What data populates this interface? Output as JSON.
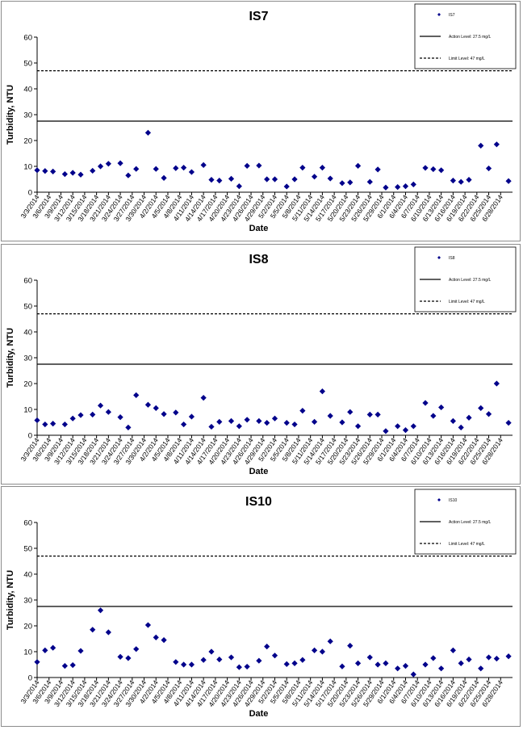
{
  "chart_data": [
    {
      "type": "scatter",
      "title": "IS7",
      "xlabel": "Date",
      "ylabel": "Turbidity, NTU",
      "ylim": [
        0,
        60
      ],
      "yticks": [
        0,
        10,
        20,
        30,
        40,
        50,
        60
      ],
      "xlim": [
        "2014-03-03",
        "2014-07-01"
      ],
      "x_tick_labels": [
        "3/3/2014",
        "3/6/2014",
        "3/9/2014",
        "3/12/2014",
        "3/15/2014",
        "3/18/2014",
        "3/21/2014",
        "3/24/2014",
        "3/27/2014",
        "3/30/2014",
        "4/2/2014",
        "4/5/2014",
        "4/8/2014",
        "4/11/2014",
        "4/14/2014",
        "4/17/2014",
        "4/20/2014",
        "4/23/2014",
        "4/26/2014",
        "4/29/2014",
        "5/2/2014",
        "5/5/2014",
        "5/8/2014",
        "5/11/2014",
        "5/14/2014",
        "5/17/2014",
        "5/20/2014",
        "5/23/2014",
        "5/26/2014",
        "5/29/2014",
        "6/1/2014",
        "6/4/2014",
        "6/7/2014",
        "6/10/2014",
        "6/13/2014",
        "6/16/2014",
        "6/19/2014",
        "6/22/2014",
        "6/25/2014",
        "6/28/2014"
      ],
      "grid": false,
      "legend_position": "top-right",
      "series": [
        {
          "name": "IS7",
          "kind": "points",
          "color": "#00008b",
          "x": [
            "2014-03-03",
            "2014-03-05",
            "2014-03-07",
            "2014-03-10",
            "2014-03-12",
            "2014-03-14",
            "2014-03-17",
            "2014-03-19",
            "2014-03-21",
            "2014-03-24",
            "2014-03-26",
            "2014-03-28",
            "2014-03-31",
            "2014-04-02",
            "2014-04-04",
            "2014-04-07",
            "2014-04-09",
            "2014-04-11",
            "2014-04-14",
            "2014-04-16",
            "2014-04-18",
            "2014-04-21",
            "2014-04-23",
            "2014-04-25",
            "2014-04-28",
            "2014-04-30",
            "2014-05-02",
            "2014-05-05",
            "2014-05-07",
            "2014-05-09",
            "2014-05-12",
            "2014-05-14",
            "2014-05-16",
            "2014-05-19",
            "2014-05-21",
            "2014-05-23",
            "2014-05-26",
            "2014-05-28",
            "2014-05-30",
            "2014-06-02",
            "2014-06-04",
            "2014-06-06",
            "2014-06-09",
            "2014-06-11",
            "2014-06-13",
            "2014-06-16",
            "2014-06-18",
            "2014-06-20",
            "2014-06-23",
            "2014-06-25",
            "2014-06-27",
            "2014-06-30"
          ],
          "y": [
            8.5,
            8.2,
            8.0,
            7.0,
            7.5,
            6.8,
            8.3,
            10.0,
            11.0,
            11.2,
            6.5,
            9.0,
            23.0,
            9.0,
            5.5,
            9.3,
            9.5,
            7.8,
            10.5,
            4.8,
            4.5,
            5.2,
            2.3,
            10.2,
            10.3,
            5.0,
            5.0,
            2.2,
            5.0,
            9.5,
            6.0,
            9.5,
            5.3,
            3.5,
            3.8,
            10.2,
            4.0,
            8.8,
            1.8,
            2.0,
            2.3,
            3.0,
            9.4,
            8.9,
            8.5,
            4.5,
            4.0,
            4.8,
            18.0,
            9.2,
            18.5,
            4.3
          ]
        },
        {
          "name": "Action Level: 27.5 mg/L",
          "kind": "line",
          "style": "solid",
          "color": "#000000",
          "value": 27.5
        },
        {
          "name": "Limit Level: 47 mg/L",
          "kind": "line",
          "style": "dashed",
          "color": "#000000",
          "value": 47
        }
      ]
    },
    {
      "type": "scatter",
      "title": "IS8",
      "xlabel": "Date",
      "ylabel": "Turbidity, NTU",
      "ylim": [
        0,
        60
      ],
      "yticks": [
        0,
        10,
        20,
        30,
        40,
        50,
        60
      ],
      "xlim": [
        "2014-03-03",
        "2014-07-01"
      ],
      "x_tick_labels": [
        "3/3/2014",
        "3/6/2014",
        "3/9/2014",
        "3/12/2014",
        "3/15/2014",
        "3/18/2014",
        "3/21/2014",
        "3/24/2014",
        "3/27/2014",
        "3/30/2014",
        "4/2/2014",
        "4/5/2014",
        "4/8/2014",
        "4/11/2014",
        "4/14/2014",
        "4/17/2014",
        "4/20/2014",
        "4/23/2014",
        "4/26/2014",
        "4/29/2014",
        "5/2/2014",
        "5/5/2014",
        "5/8/2014",
        "5/11/2014",
        "5/14/2014",
        "5/17/2014",
        "5/20/2014",
        "5/23/2014",
        "5/26/2014",
        "5/29/2014",
        "6/1/2014",
        "6/4/2014",
        "6/7/2014",
        "6/10/2014",
        "6/13/2014",
        "6/16/2014",
        "6/19/2014",
        "6/22/2014",
        "6/25/2014",
        "6/28/2014"
      ],
      "grid": false,
      "legend_position": "top-right",
      "series": [
        {
          "name": "IS8",
          "kind": "points",
          "color": "#00008b",
          "x": [
            "2014-03-03",
            "2014-03-05",
            "2014-03-07",
            "2014-03-10",
            "2014-03-12",
            "2014-03-14",
            "2014-03-17",
            "2014-03-19",
            "2014-03-21",
            "2014-03-24",
            "2014-03-26",
            "2014-03-28",
            "2014-03-31",
            "2014-04-02",
            "2014-04-04",
            "2014-04-07",
            "2014-04-09",
            "2014-04-11",
            "2014-04-14",
            "2014-04-16",
            "2014-04-18",
            "2014-04-21",
            "2014-04-23",
            "2014-04-25",
            "2014-04-28",
            "2014-04-30",
            "2014-05-02",
            "2014-05-05",
            "2014-05-07",
            "2014-05-09",
            "2014-05-12",
            "2014-05-14",
            "2014-05-16",
            "2014-05-19",
            "2014-05-21",
            "2014-05-23",
            "2014-05-26",
            "2014-05-28",
            "2014-05-30",
            "2014-06-02",
            "2014-06-04",
            "2014-06-06",
            "2014-06-09",
            "2014-06-11",
            "2014-06-13",
            "2014-06-16",
            "2014-06-18",
            "2014-06-20",
            "2014-06-23",
            "2014-06-25",
            "2014-06-27",
            "2014-06-30"
          ],
          "y": [
            5.8,
            4.2,
            4.5,
            4.2,
            6.5,
            7.8,
            8.0,
            11.5,
            9.0,
            7.0,
            3.0,
            15.5,
            11.8,
            10.5,
            8.2,
            8.8,
            4.2,
            7.2,
            14.5,
            3.3,
            5.2,
            5.5,
            3.5,
            6.0,
            5.5,
            4.8,
            6.5,
            4.8,
            4.2,
            9.5,
            5.2,
            17.0,
            7.5,
            5.0,
            9.0,
            3.5,
            8.0,
            8.0,
            1.6,
            3.5,
            2.0,
            3.5,
            12.5,
            7.5,
            10.8,
            5.5,
            3.0,
            6.8,
            10.5,
            8.2,
            20.0,
            4.8
          ]
        },
        {
          "name": "Action Level: 27.5 mg/L",
          "kind": "line",
          "style": "solid",
          "color": "#000000",
          "value": 27.5
        },
        {
          "name": "Limit Level: 47 mg/L",
          "kind": "line",
          "style": "dashed",
          "color": "#000000",
          "value": 47
        }
      ]
    },
    {
      "type": "scatter",
      "title": "IS10",
      "xlabel": "Date",
      "ylabel": "Turbidity, NTU",
      "ylim": [
        0,
        60
      ],
      "yticks": [
        0,
        10,
        20,
        30,
        40,
        50,
        60
      ],
      "xlim": [
        "2014-03-03",
        "2014-07-01"
      ],
      "x_tick_labels": [
        "3/3/2014",
        "3/6/2014",
        "3/9/2014",
        "3/12/2014",
        "3/15/2014",
        "3/18/2014",
        "3/21/2014",
        "3/24/2014",
        "3/27/2014",
        "3/30/2014",
        "4/2/2014",
        "4/5/2014",
        "4/8/2014",
        "4/11/2014",
        "4/14/2014",
        "4/17/2014",
        "4/20/2014",
        "4/23/2014",
        "4/26/2014",
        "4/29/2014",
        "5/2/2014",
        "5/5/2014",
        "5/8/2014",
        "5/11/2014",
        "5/14/2014",
        "5/17/2014",
        "5/20/2014",
        "5/23/2014",
        "5/26/2014",
        "5/29/2014",
        "6/1/2014",
        "6/4/2014",
        "6/7/2014",
        "6/10/2014",
        "6/13/2014",
        "6/16/2014",
        "6/19/2014",
        "6/22/2014",
        "6/25/2014",
        "6/28/2014"
      ],
      "grid": false,
      "legend_position": "top-right",
      "series": [
        {
          "name": "IS10",
          "kind": "points",
          "color": "#00008b",
          "x": [
            "2014-03-03",
            "2014-03-05",
            "2014-03-07",
            "2014-03-10",
            "2014-03-12",
            "2014-03-14",
            "2014-03-17",
            "2014-03-19",
            "2014-03-21",
            "2014-03-24",
            "2014-03-26",
            "2014-03-28",
            "2014-03-31",
            "2014-04-02",
            "2014-04-04",
            "2014-04-07",
            "2014-04-09",
            "2014-04-11",
            "2014-04-14",
            "2014-04-16",
            "2014-04-18",
            "2014-04-21",
            "2014-04-23",
            "2014-04-25",
            "2014-04-28",
            "2014-04-30",
            "2014-05-02",
            "2014-05-05",
            "2014-05-07",
            "2014-05-09",
            "2014-05-12",
            "2014-05-14",
            "2014-05-16",
            "2014-05-19",
            "2014-05-21",
            "2014-05-23",
            "2014-05-26",
            "2014-05-28",
            "2014-05-30",
            "2014-06-02",
            "2014-06-04",
            "2014-06-06",
            "2014-06-09",
            "2014-06-11",
            "2014-06-13",
            "2014-06-16",
            "2014-06-18",
            "2014-06-20",
            "2014-06-23",
            "2014-06-25",
            "2014-06-27",
            "2014-06-30"
          ],
          "y": [
            6.0,
            10.5,
            11.5,
            4.5,
            4.8,
            10.3,
            18.5,
            26.0,
            17.5,
            8.0,
            7.5,
            11.0,
            20.3,
            15.5,
            14.5,
            6.0,
            5.0,
            5.0,
            6.8,
            10.0,
            7.0,
            7.8,
            4.0,
            4.2,
            6.5,
            12.0,
            8.5,
            5.2,
            5.5,
            6.8,
            10.5,
            10.0,
            14.0,
            4.3,
            12.3,
            5.5,
            7.8,
            5.0,
            5.5,
            3.5,
            4.5,
            1.2,
            5.0,
            7.5,
            3.5,
            10.5,
            5.5,
            7.0,
            3.5,
            7.8,
            7.3,
            8.2
          ]
        },
        {
          "name": "Action Level: 27.5 mg/L",
          "kind": "line",
          "style": "solid",
          "color": "#000000",
          "value": 27.5
        },
        {
          "name": "Limit Level: 47 mg/L",
          "kind": "line",
          "style": "dashed",
          "color": "#000000",
          "value": 47
        }
      ]
    }
  ]
}
